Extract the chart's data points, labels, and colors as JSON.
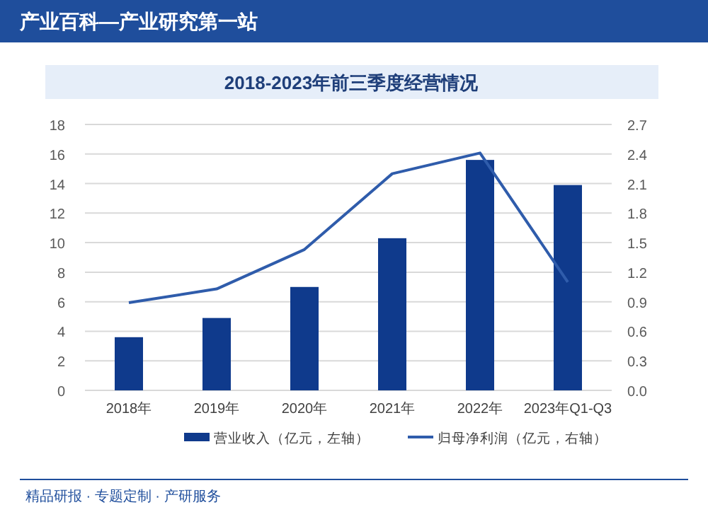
{
  "chart_data": {
    "type": "bar",
    "title": "2018-2023年前三季度经营情况",
    "annotations": [
      "产业百科—产业研究第一站",
      "精品研报 · 专题定制 · 产研服务"
    ],
    "categories": [
      "2018年",
      "2019年",
      "2020年",
      "2021年",
      "2022年",
      "2023年Q1-Q3"
    ],
    "series": [
      {
        "name": "营业收入（亿元，左轴）",
        "color": "#0f3a8c",
        "values": [
          3.6,
          4.9,
          7.0,
          10.3,
          15.6,
          13.9
        ]
      },
      {
        "name": "归母净利润（亿元，右轴）",
        "type": "line",
        "axis": "y2",
        "color": "#2f5cab",
        "values": [
          0.89,
          1.03,
          1.43,
          2.2,
          2.41,
          1.1
        ]
      }
    ],
    "ylim": [
      0,
      18
    ],
    "yticks": [
      0,
      2,
      4,
      6,
      8,
      10,
      12,
      14,
      16,
      18
    ],
    "y2lim": [
      0,
      2.7
    ],
    "y2ticks": [
      {
        "value": 0,
        "label": "0.0"
      },
      0.3,
      0.6,
      0.9,
      1.2,
      1.5,
      1.8,
      2.1,
      2.4,
      2.7
    ],
    "grid": "y",
    "legend": "bottom",
    "marker": "none",
    "line_style": "solid"
  }
}
